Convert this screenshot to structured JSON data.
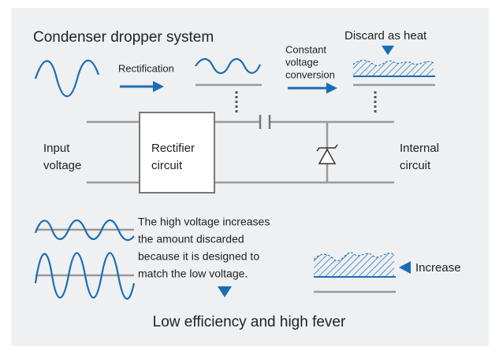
{
  "title": "Condenser dropper system",
  "rectification": "Rectification",
  "conversion": {
    "lines": [
      "Constant",
      "voltage",
      "conversion"
    ]
  },
  "discard": "Discard as heat",
  "input": {
    "lines": [
      "Input",
      "voltage"
    ]
  },
  "rectifier": {
    "lines": [
      "Rectifier",
      "circuit"
    ]
  },
  "internal": {
    "lines": [
      "Internal",
      "circuit"
    ]
  },
  "note": {
    "lines": [
      "The high voltage increases",
      "the amount discarded",
      "because it is designed to",
      "match the low voltage."
    ]
  },
  "increase": "Increase",
  "conclusion": "Low efficiency and high fever"
}
